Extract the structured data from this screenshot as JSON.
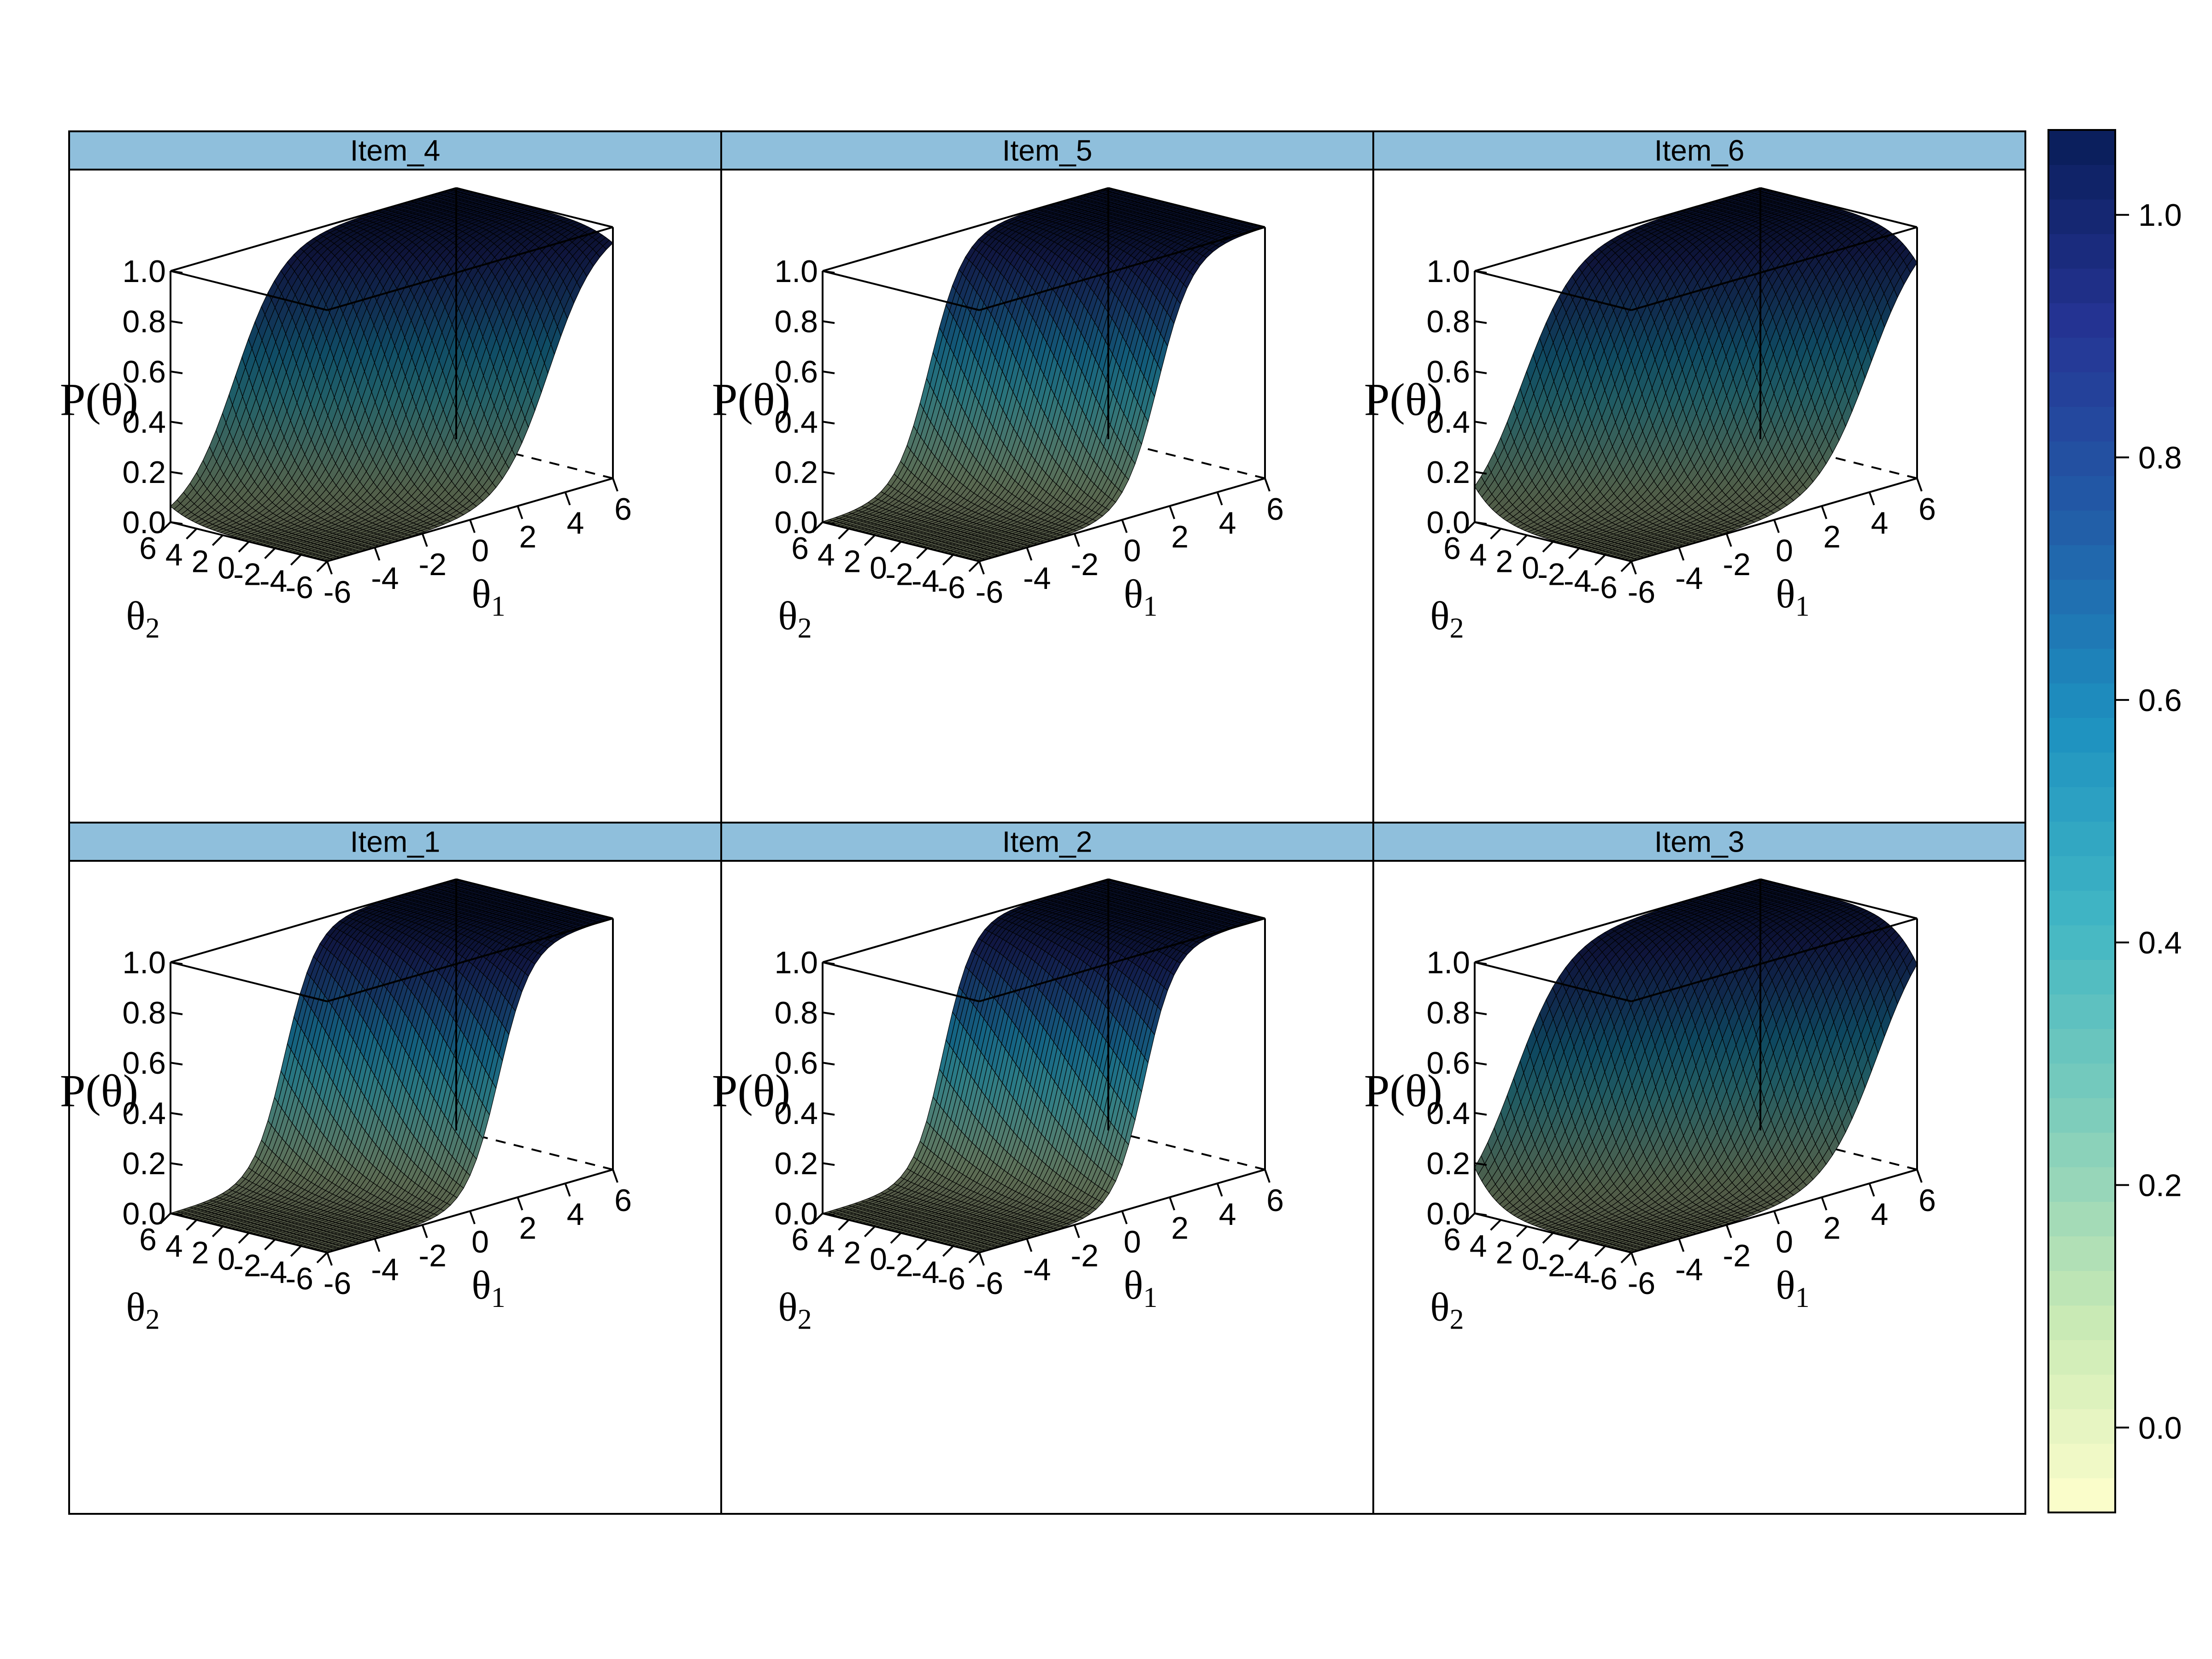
{
  "chart_data": {
    "type": "surface3d",
    "colorkey": {
      "ticks": [
        0.0,
        0.2,
        0.4,
        0.6,
        0.8,
        1.0
      ],
      "tick_labels": [
        "0.0",
        "0.2",
        "0.4",
        "0.6",
        "0.8",
        "1.0"
      ],
      "range": [
        -0.07,
        1.07
      ],
      "colors": [
        "#ffffcc",
        "#c7e9b4",
        "#7fcdbb",
        "#41b6c4",
        "#1d91c0",
        "#225ea8",
        "#253494",
        "#081d58"
      ]
    },
    "axes": {
      "x": {
        "label": "θ",
        "sub": "1",
        "range": [
          -6,
          6
        ],
        "ticks": [
          -6,
          -4,
          -2,
          0,
          2,
          4,
          6
        ]
      },
      "y": {
        "label": "θ",
        "sub": "2",
        "range": [
          -6,
          6
        ],
        "ticks": [
          -6,
          -4,
          -2,
          0,
          2,
          4,
          6
        ]
      },
      "z": {
        "label": "P(θ)",
        "range": [
          0,
          1
        ],
        "ticks": [
          0.0,
          0.2,
          0.4,
          0.6,
          0.8,
          1.0
        ],
        "tick_labels": [
          "0.0",
          "0.2",
          "0.4",
          "0.6",
          "0.8",
          "1.0"
        ]
      }
    },
    "panels": [
      {
        "title": "Item_4",
        "a1": 1.0,
        "a2": 0.55,
        "d": 0.0
      },
      {
        "title": "Item_5",
        "a1": 1.4,
        "a2": 0.35,
        "d": 0.0
      },
      {
        "title": "Item_6",
        "a1": 0.9,
        "a2": 0.6,
        "d": 0.0
      },
      {
        "title": "Item_1",
        "a1": 1.5,
        "a2": 0.3,
        "d": 0.0
      },
      {
        "title": "Item_2",
        "a1": 1.6,
        "a2": 0.25,
        "d": 0.0
      },
      {
        "title": "Item_3",
        "a1": 0.9,
        "a2": 0.65,
        "d": 0.0
      }
    ]
  }
}
